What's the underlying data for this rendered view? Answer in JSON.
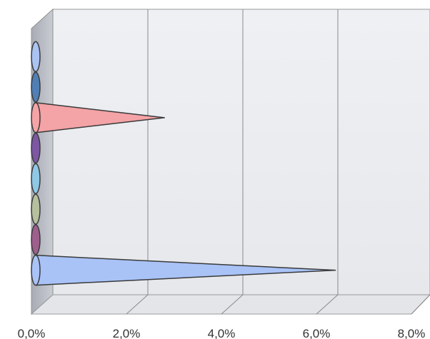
{
  "chart_data": {
    "type": "bar",
    "orientation": "horizontal",
    "bar_shape": "cone",
    "style": "3d",
    "x_ticks": [
      "0,0%",
      "2,0%",
      "4,0%",
      "6,0%",
      "8,0%"
    ],
    "xlim": [
      0,
      8
    ],
    "grid": true,
    "series": [
      {
        "values": [
          0.1,
          0.1,
          2.8,
          0.1,
          0.1,
          0.1,
          0.1,
          6.4
        ]
      }
    ],
    "bar_colors": [
      "#a9c3f2",
      "#4f7fb4",
      "#f4a3a6",
      "#7d57a3",
      "#8fc7e6",
      "#b6bf9e",
      "#9e5f8d",
      "#a9c3f7"
    ]
  }
}
